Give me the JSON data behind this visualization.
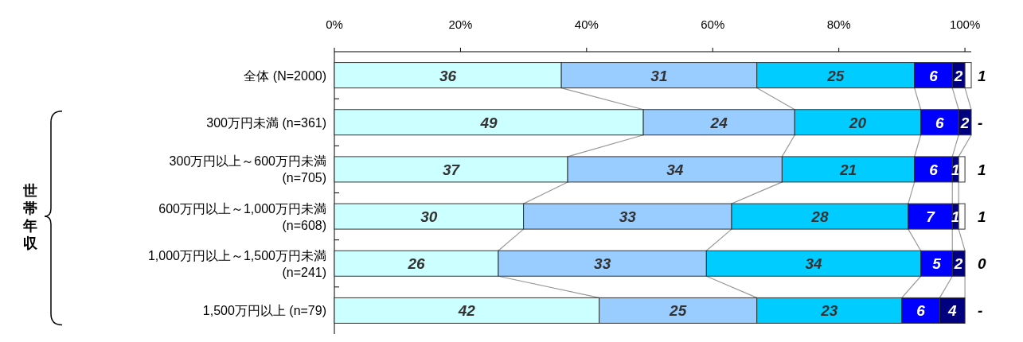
{
  "chart_data": {
    "type": "bar",
    "orientation": "horizontal",
    "stacked": true,
    "categories": [
      "全体 (N=2000)",
      "300万円未満 (n=361)",
      "300万円以上～600万円未満\n(n=705)",
      "600万円以上～1,000万円未満\n(n=608)",
      "1,000万円以上～1,500万円未満\n(n=241)",
      "1,500万円以上 (n=79)"
    ],
    "series": [
      {
        "color": "#ccffff",
        "values": [
          36,
          49,
          37,
          30,
          26,
          42
        ],
        "value_labels": [
          "36",
          "49",
          "37",
          "30",
          "26",
          "42"
        ]
      },
      {
        "color": "#99ccff",
        "values": [
          31,
          24,
          34,
          33,
          33,
          25
        ],
        "value_labels": [
          "31",
          "24",
          "34",
          "33",
          "33",
          "25"
        ]
      },
      {
        "color": "#00ccff",
        "values": [
          25,
          20,
          21,
          28,
          34,
          23
        ],
        "value_labels": [
          "25",
          "20",
          "21",
          "28",
          "34",
          "23"
        ]
      },
      {
        "color": "#0000ff",
        "values": [
          6,
          6,
          6,
          7,
          5,
          6
        ],
        "value_labels": [
          "6",
          "6",
          "6",
          "7",
          "5",
          "6"
        ]
      },
      {
        "color": "#000080",
        "values": [
          2,
          2,
          1,
          1,
          2,
          4
        ],
        "value_labels": [
          "2",
          "2",
          "1",
          "1",
          "2",
          "4"
        ]
      },
      {
        "color": "#ffffff",
        "values": [
          1,
          null,
          1,
          1,
          0,
          null
        ],
        "value_labels": [
          "1",
          "-",
          "1",
          "1",
          "0",
          "-"
        ]
      }
    ],
    "xlim": [
      0,
      101
    ],
    "xticks": [
      {
        "value": 0,
        "label": "0%"
      },
      {
        "value": 20,
        "label": "20%"
      },
      {
        "value": 40,
        "label": "40%"
      },
      {
        "value": 60,
        "label": "60%"
      },
      {
        "value": 80,
        "label": "80%"
      },
      {
        "value": 100,
        "label": "100%"
      }
    ],
    "annotations": [
      "世帯年収"
    ],
    "grid": false
  }
}
